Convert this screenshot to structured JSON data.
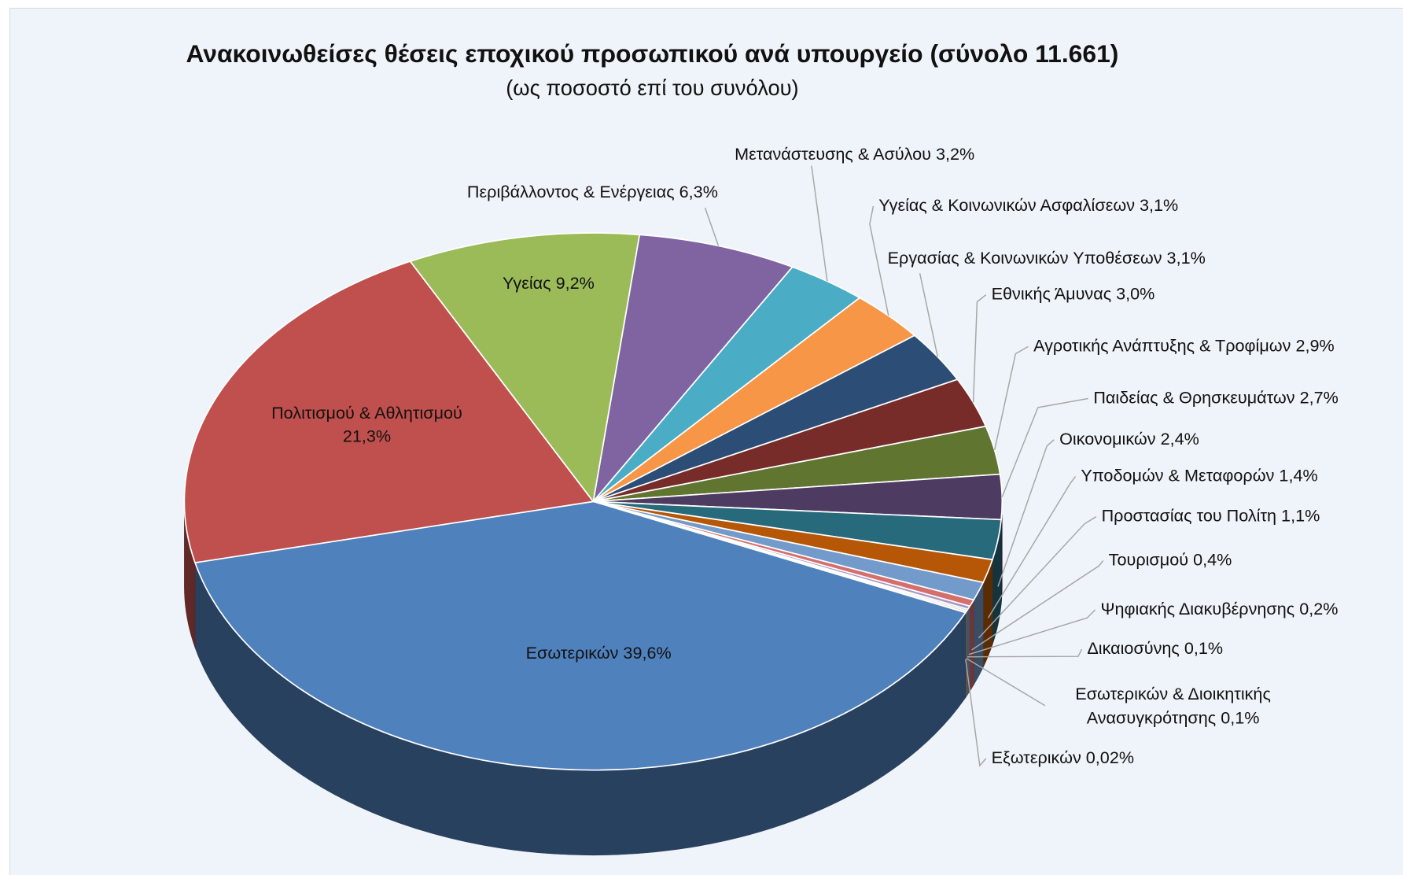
{
  "chart_data": {
    "type": "pie",
    "title": "Ανακοινωθείσες θέσεις εποχικού προσωπικού ανά υπουργείο (σύνολο 11.661)",
    "subtitle": "(ως ποσοστό επί του συνόλου)",
    "categories": [
      "Περιβάλλοντος & Ενέργειας",
      "Μετανάστευσης & Ασύλου",
      "Υγείας & Κοινωνικών Ασφαλίσεων",
      "Εργασίας & Κοινωνικών Υποθέσεων",
      "Εθνικής Άμυνας",
      "Αγροτικής Ανάπτυξης & Τροφίμων",
      "Παιδείας & Θρησκευμάτων",
      "Οικονομικών",
      "Υποδομών & Μεταφορών",
      "Προστασίας του Πολίτη",
      "Τουρισμού",
      "Ψηφιακής Διακυβέρνησης",
      "Δικαιοσύνης",
      "Εσωτερικών & Διοικητικής Ανασυγκρότησης",
      "Εξωτερικών",
      "Εσωτερικών",
      "Πολιτισμού & Αθλητισμού",
      "Υγείας"
    ],
    "values": [
      6.3,
      3.2,
      3.1,
      3.1,
      3.0,
      2.9,
      2.7,
      2.4,
      1.4,
      1.1,
      0.4,
      0.2,
      0.1,
      0.1,
      0.02,
      39.6,
      21.3,
      9.2
    ],
    "value_labels": [
      "6,3%",
      "3,2%",
      "3,1%",
      "3,1%",
      "3,0%",
      "2,9%",
      "2,7%",
      "2,4%",
      "1,4%",
      "1,1%",
      "0,4%",
      "0,2%",
      "0,1%",
      "0,1%",
      "0,02%",
      "39,6%",
      "21,3%",
      "9,2%"
    ],
    "colors": [
      "#8064a2",
      "#4bacc6",
      "#f79646",
      "#2c4d75",
      "#772c2a",
      "#5f7530",
      "#4d3b62",
      "#276a7c",
      "#b65708",
      "#729aca",
      "#d46f6c",
      "#a994c6",
      "#6cc3d8",
      "#f9b07a",
      "#4a6fa0",
      "#4f81bd",
      "#c0504d",
      "#9bbb59"
    ]
  }
}
